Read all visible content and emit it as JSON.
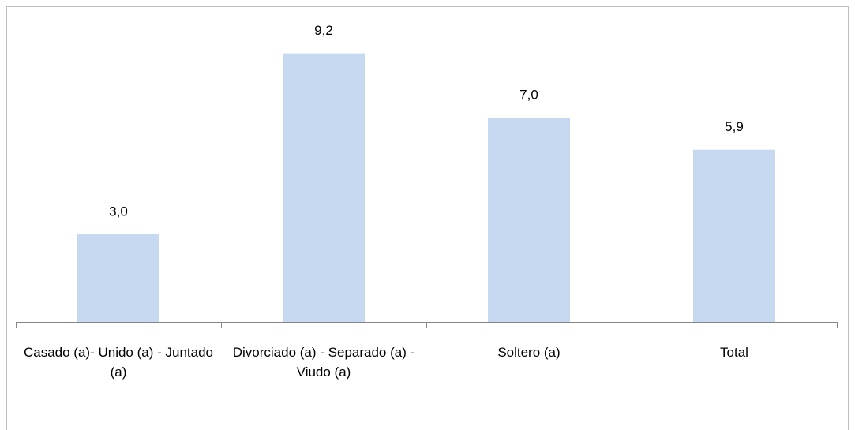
{
  "chart_data": {
    "type": "bar",
    "categories": [
      "Casado (a)- Unido (a) - Juntado (a)",
      "Divorciado (a) - Separado (a) -  Viudo (a)",
      "Soltero (a)",
      "Total"
    ],
    "values": [
      3.0,
      9.2,
      7.0,
      5.9
    ],
    "value_labels": [
      "3,0",
      "9,2",
      "7,0",
      "5,9"
    ],
    "color": "#c6d9f1",
    "ylim": [
      0,
      10
    ]
  }
}
